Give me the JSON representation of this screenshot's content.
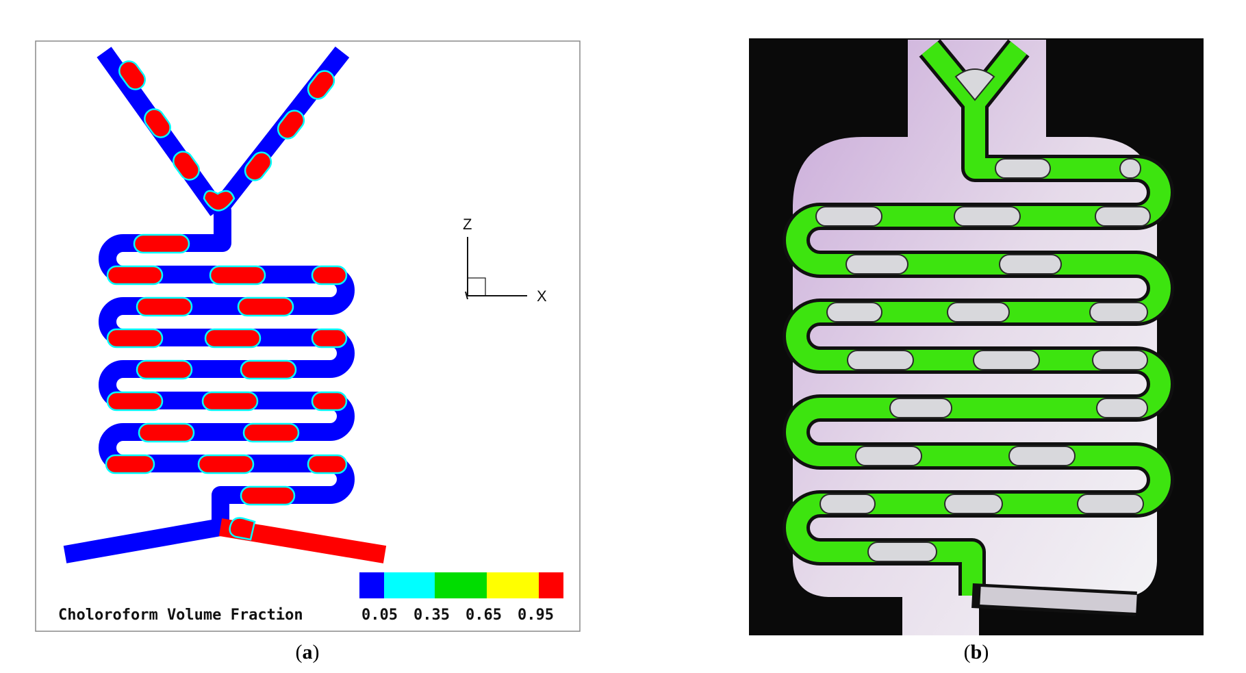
{
  "panel_a": {
    "caption_letter": "a",
    "legend": {
      "title": "Choloroform Volume Fraction",
      "ticks": [
        "0.05",
        "0.35",
        "0.65",
        "0.95"
      ],
      "colors": [
        "#0000ff",
        "#00ffff",
        "#00dd00",
        "#ffff00",
        "#ff0000"
      ]
    },
    "axes": {
      "vertical": "Z",
      "horizontal": "X"
    },
    "colors": {
      "continuous_phase": "#0000ff",
      "dispersed_phase": "#ff0000",
      "interface": "#00ffff"
    }
  },
  "panel_b": {
    "caption_letter": "b",
    "colors": {
      "background": "#0a0a0a",
      "chip": "#e2d4e6",
      "green_phase": "#3de40f",
      "droplet": "#d8d8dc",
      "wall": "#101010"
    }
  }
}
